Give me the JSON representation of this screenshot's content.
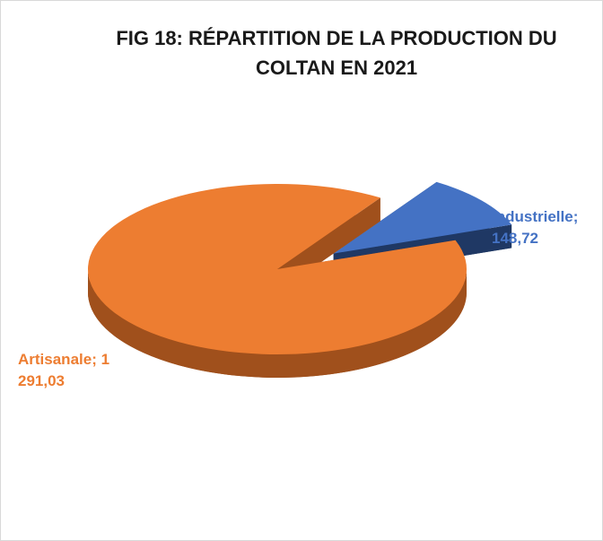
{
  "chart_data": {
    "type": "pie3d",
    "title": "FIG 18: RÉPARTITION DE LA PRODUCTION DU COLTAN EN 2021",
    "categories": [
      "Industrielle",
      "Artisanale"
    ],
    "values": [
      148.72,
      1291.03
    ],
    "value_labels": [
      "148,72",
      "1 291,03"
    ],
    "label_separator": "; ",
    "colors": [
      "#4472c4",
      "#ed7d31"
    ],
    "side_colors": [
      "#1f3864",
      "#a0501c"
    ],
    "exploded": [
      true,
      false
    ]
  }
}
